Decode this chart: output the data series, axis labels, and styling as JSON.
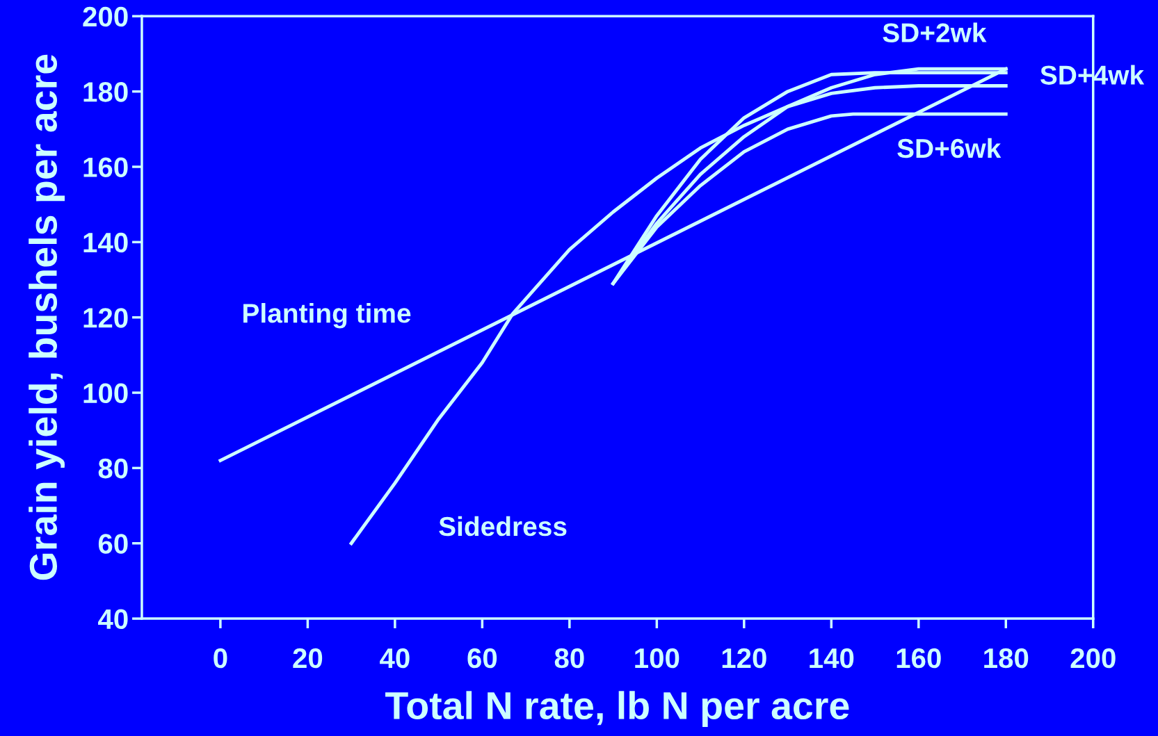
{
  "chart_data": {
    "type": "line",
    "xlabel": "Total N rate, lb N per acre",
    "ylabel": "Grain yield, bushels per acre",
    "xlim": [
      -18,
      200
    ],
    "xticks": [
      0,
      20,
      40,
      60,
      80,
      100,
      120,
      140,
      160,
      180,
      200
    ],
    "ylim": [
      40,
      200
    ],
    "yticks": [
      40,
      60,
      80,
      100,
      120,
      140,
      160,
      180,
      200
    ],
    "grid": false,
    "legend": false,
    "marker": "none",
    "line_style": "solid",
    "series": [
      {
        "name": "Planting time",
        "color": "#ccffff",
        "x": [
          0,
          180
        ],
        "values": [
          82,
          186
        ]
      },
      {
        "name": "Sidedress",
        "color": "#ccffff",
        "x": [
          30,
          40,
          50,
          60,
          67,
          80,
          90,
          100,
          110,
          120,
          130,
          140,
          150,
          160,
          180
        ],
        "values": [
          60,
          76,
          93,
          108,
          121,
          138,
          148,
          157,
          165,
          171,
          176,
          179.5,
          181,
          181.5,
          181.5
        ]
      },
      {
        "name": "SD+2wk",
        "color": "#ccffff",
        "x": [
          90,
          100,
          110,
          120,
          130,
          140,
          150,
          160,
          180
        ],
        "values": [
          129,
          145,
          158,
          168,
          176,
          181,
          184.5,
          186,
          186
        ]
      },
      {
        "name": "SD+4wk",
        "color": "#ccffff",
        "x": [
          90,
          100,
          110,
          120,
          130,
          140,
          150,
          180
        ],
        "values": [
          129,
          147,
          162,
          173,
          180,
          184.5,
          185,
          185
        ]
      },
      {
        "name": "SD+6wk",
        "color": "#ccffff",
        "x": [
          90,
          100,
          110,
          120,
          130,
          140,
          145,
          180
        ],
        "values": [
          129,
          144,
          155,
          164,
          170,
          173.5,
          174,
          174
        ]
      }
    ]
  }
}
